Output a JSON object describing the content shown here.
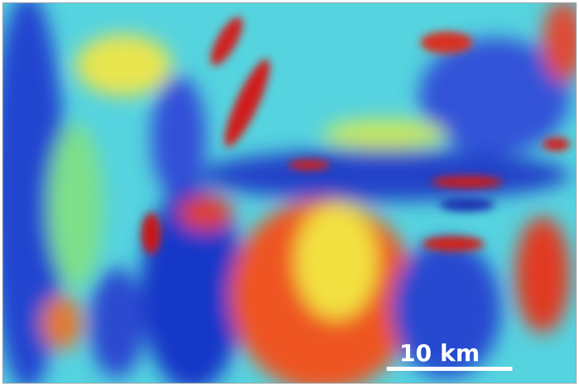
{
  "scale_bar": {
    "label": "10 km"
  }
}
